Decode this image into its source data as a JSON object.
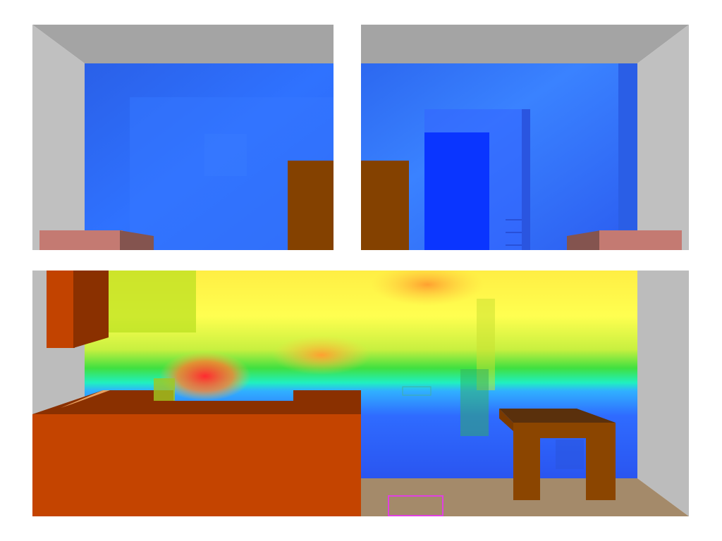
{
  "scene": {
    "description_visible_text": "",
    "views": [
      {
        "id": "top-left",
        "kind": "room-view"
      },
      {
        "id": "top-right",
        "kind": "room-view"
      },
      {
        "id": "bottom",
        "kind": "heatmap-room-view"
      }
    ],
    "colors": {
      "wall_grey": "#a9a9a9",
      "ceiling_grey": "#a0a0a0",
      "side_grey": "#bdbdbd",
      "cool_blue": "#2f6bff",
      "deep_blue": "#0b3cff",
      "door_brown": "#8b4500",
      "bench_pink": "#c87870",
      "bench_shadow": "#8a5550",
      "counter_orange": "#c84400",
      "counter_top": "#8a3000",
      "cabinet_dark": "#7a2a00",
      "table_brown": "#8b4500",
      "table_top": "#5a2e0a",
      "floor_tan": "#a48a6a",
      "marker_magenta": "#e040e0",
      "heat_red": "#ff3030",
      "heat_yellow": "#ffff40",
      "heat_green": "#30e030",
      "heat_cyan": "#20f0f0"
    }
  }
}
